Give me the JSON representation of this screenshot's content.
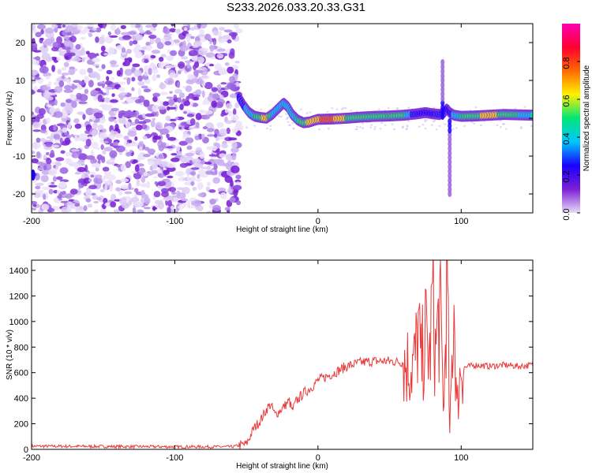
{
  "title": "S233.2026.033.20.33.G31",
  "chart_data": [
    {
      "type": "heatmap",
      "name": "spectrogram",
      "xlabel": "Height of straight line (km)",
      "ylabel": "Frequency (Hz)",
      "xlim": [
        -200,
        150
      ],
      "ylim": [
        -25,
        25
      ],
      "xticks": [
        -200,
        -100,
        0,
        100
      ],
      "yticks": [
        -20,
        -10,
        0,
        10,
        20
      ],
      "colorbar": {
        "label": "Normalized spectral amplitude",
        "range": [
          0.0,
          1.0
        ],
        "ticks": [
          0.0,
          0.2,
          0.4,
          0.6,
          0.8
        ],
        "tick_labels": [
          "0.0",
          "0.2",
          "0.4",
          "0.6",
          "0.8"
        ],
        "colormap": [
          "#e8dcf8",
          "#7d1fd6",
          "#1a00ff",
          "#00c8ff",
          "#00e676",
          "#fff200",
          "#ff6a00",
          "#ff0030",
          "#ff00b4"
        ]
      },
      "noise_region_x": [
        -200,
        -55
      ],
      "signal_trace": {
        "x": [
          -55,
          -52,
          -48,
          -44,
          -40,
          -36,
          -32,
          -28,
          -24,
          -21,
          -18,
          -14,
          -10,
          -6,
          -2,
          0,
          10,
          20,
          30,
          40,
          50,
          60,
          65,
          70,
          75,
          80,
          85,
          88,
          90,
          92,
          95,
          100,
          110,
          120,
          130,
          140,
          150
        ],
        "freq": [
          5.5,
          3.5,
          1.5,
          0.5,
          0.2,
          0.0,
          1.0,
          2.5,
          4.0,
          3.0,
          1.0,
          -0.5,
          -1.2,
          -1.0,
          -0.5,
          -0.3,
          -0.2,
          0.0,
          0.3,
          0.5,
          0.6,
          0.8,
          1.0,
          1.2,
          1.5,
          1.2,
          1.0,
          1.5,
          2.5,
          1.5,
          0.8,
          0.5,
          0.6,
          0.8,
          1.0,
          0.9,
          0.8
        ],
        "amplitude": [
          0.3,
          0.35,
          0.45,
          0.55,
          0.6,
          0.85,
          0.5,
          0.4,
          0.45,
          0.4,
          0.5,
          0.55,
          0.6,
          0.75,
          0.8,
          0.85,
          0.9,
          0.7,
          0.6,
          0.65,
          0.7,
          0.6,
          0.4,
          0.3,
          0.25,
          0.3,
          0.35,
          0.3,
          0.25,
          0.3,
          0.45,
          0.55,
          0.6,
          0.85,
          0.6,
          0.55,
          0.5
        ]
      },
      "vertical_spikes": [
        {
          "x": 90,
          "freq_range": [
            -20,
            15
          ]
        }
      ]
    },
    {
      "type": "line",
      "name": "snr",
      "xlabel": "Height of straight line (km)",
      "ylabel": "SNR (10 * v/v)",
      "xlim": [
        -200,
        150
      ],
      "ylim": [
        0,
        1480
      ],
      "xticks": [
        -200,
        -100,
        0,
        100
      ],
      "yticks": [
        0,
        200,
        400,
        600,
        800,
        1000,
        1200,
        1400
      ],
      "color": "#e83a3a",
      "series": [
        {
          "name": "SNR",
          "x": [
            -200,
            -100,
            -60,
            -50,
            -45,
            -40,
            -35,
            -33,
            -30,
            -25,
            -20,
            -18,
            -15,
            -10,
            -5,
            0,
            10,
            20,
            30,
            40,
            50,
            60,
            65,
            68,
            70,
            72,
            75,
            78,
            80,
            82,
            85,
            88,
            90,
            92,
            95,
            97,
            100,
            102,
            110,
            120,
            130,
            140,
            150
          ],
          "values": [
            25,
            20,
            20,
            40,
            160,
            230,
            330,
            350,
            270,
            320,
            380,
            300,
            380,
            440,
            480,
            540,
            590,
            650,
            680,
            690,
            690,
            680,
            650,
            700,
            950,
            650,
            900,
            700,
            1200,
            750,
            1100,
            300,
            1460,
            100,
            1200,
            300,
            700,
            640,
            660,
            650,
            660,
            650,
            660
          ]
        }
      ]
    }
  ]
}
